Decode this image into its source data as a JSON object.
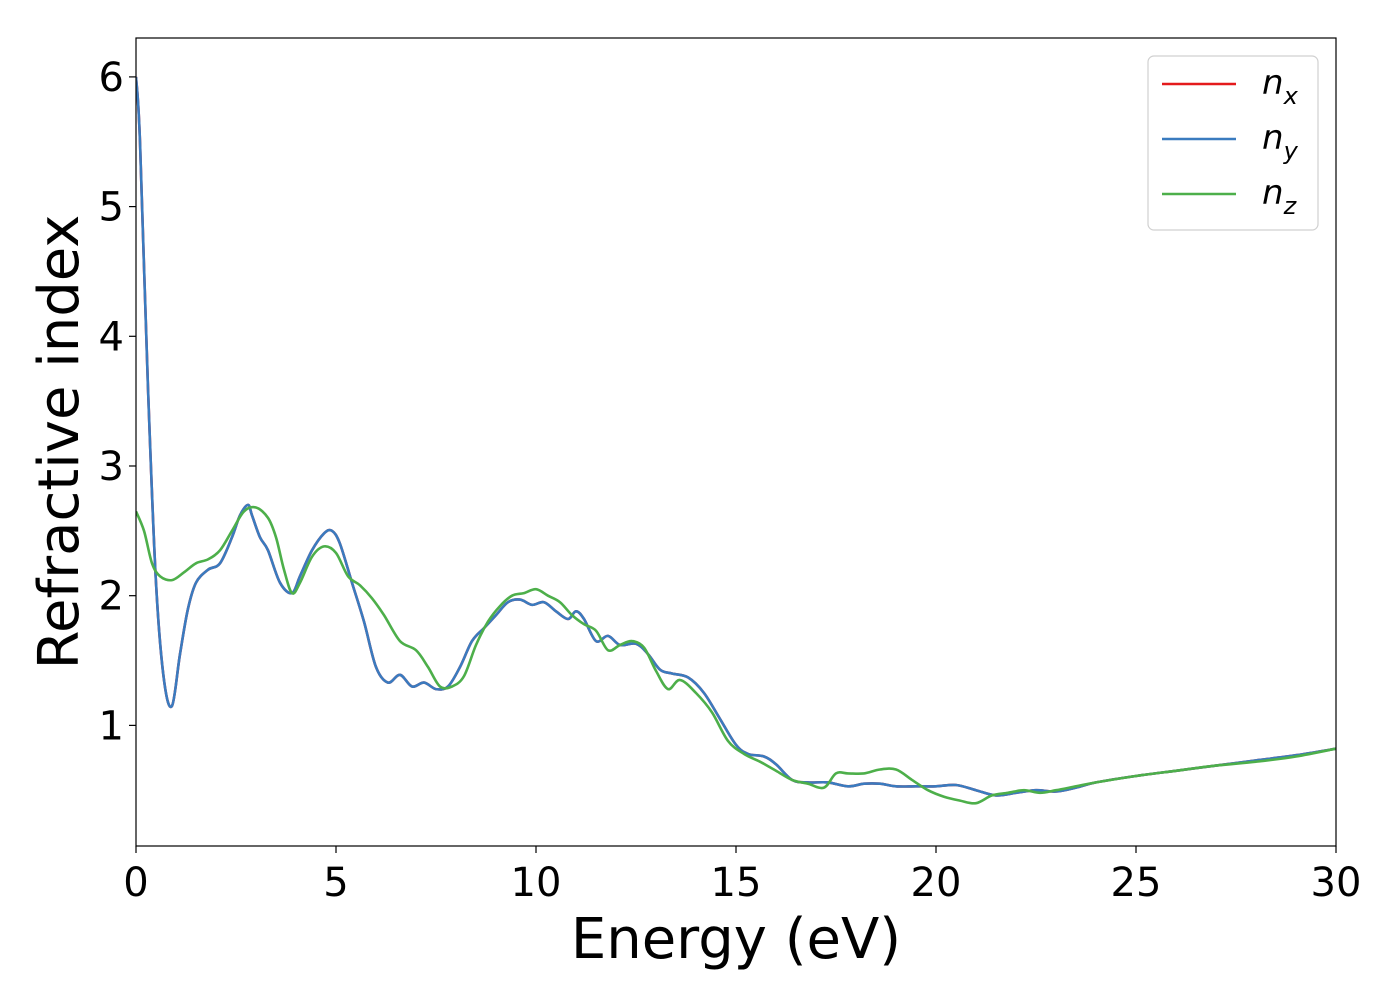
{
  "chart_data": {
    "type": "line",
    "xlabel": "Energy (eV)",
    "ylabel": "Refractive index",
    "xlim": [
      0,
      30
    ],
    "ylim": [
      0.07,
      6.3
    ],
    "xticks": [
      0,
      5,
      10,
      15,
      20,
      25,
      30
    ],
    "yticks": [
      1,
      2,
      3,
      4,
      5,
      6
    ],
    "grid": false,
    "legend_position": "top-right",
    "series": [
      {
        "name": "n_x",
        "label_base": "n",
        "label_sub": "x",
        "color": "#e41a1c",
        "x": [
          0,
          0.1,
          0.3,
          0.5,
          0.7,
          0.9,
          1.1,
          1.3,
          1.5,
          1.8,
          2.1,
          2.4,
          2.6,
          2.8,
          2.9,
          3.1,
          3.3,
          3.6,
          3.9,
          4.1,
          4.4,
          4.7,
          4.9,
          5.1,
          5.4,
          5.7,
          6.0,
          6.3,
          6.6,
          6.9,
          7.2,
          7.5,
          7.8,
          8.1,
          8.4,
          8.7,
          9.0,
          9.3,
          9.6,
          9.9,
          10.2,
          10.5,
          10.8,
          11.0,
          11.2,
          11.5,
          11.8,
          12.1,
          12.5,
          12.8,
          13.1,
          13.4,
          13.8,
          14.2,
          14.6,
          15.0,
          15.3,
          15.7,
          16.0,
          16.4,
          16.8,
          17.3,
          17.8,
          18.2,
          18.6,
          19.0,
          19.5,
          20.0,
          20.5,
          21.0,
          21.5,
          22.0,
          22.5,
          23.0,
          23.5,
          24.0,
          25.0,
          26.0,
          27.0,
          28.0,
          29.0,
          30.0
        ],
        "y": [
          6.0,
          5.5,
          3.6,
          2.1,
          1.35,
          1.15,
          1.55,
          1.9,
          2.1,
          2.2,
          2.25,
          2.45,
          2.62,
          2.7,
          2.62,
          2.45,
          2.35,
          2.1,
          2.02,
          2.15,
          2.35,
          2.48,
          2.5,
          2.4,
          2.1,
          1.8,
          1.45,
          1.33,
          1.39,
          1.3,
          1.33,
          1.28,
          1.3,
          1.45,
          1.65,
          1.75,
          1.85,
          1.95,
          1.97,
          1.93,
          1.95,
          1.88,
          1.82,
          1.88,
          1.82,
          1.65,
          1.69,
          1.62,
          1.63,
          1.55,
          1.43,
          1.4,
          1.37,
          1.25,
          1.05,
          0.85,
          0.78,
          0.76,
          0.7,
          0.58,
          0.56,
          0.56,
          0.53,
          0.55,
          0.55,
          0.53,
          0.53,
          0.53,
          0.54,
          0.5,
          0.46,
          0.48,
          0.5,
          0.49,
          0.52,
          0.56,
          0.61,
          0.65,
          0.69,
          0.73,
          0.77,
          0.82
        ]
      },
      {
        "name": "n_y",
        "label_base": "n",
        "label_sub": "y",
        "color": "#3a7bbf",
        "x": [
          0,
          0.1,
          0.3,
          0.5,
          0.7,
          0.9,
          1.1,
          1.3,
          1.5,
          1.8,
          2.1,
          2.4,
          2.6,
          2.8,
          2.9,
          3.1,
          3.3,
          3.6,
          3.9,
          4.1,
          4.4,
          4.7,
          4.9,
          5.1,
          5.4,
          5.7,
          6.0,
          6.3,
          6.6,
          6.9,
          7.2,
          7.5,
          7.8,
          8.1,
          8.4,
          8.7,
          9.0,
          9.3,
          9.6,
          9.9,
          10.2,
          10.5,
          10.8,
          11.0,
          11.2,
          11.5,
          11.8,
          12.1,
          12.5,
          12.8,
          13.1,
          13.4,
          13.8,
          14.2,
          14.6,
          15.0,
          15.3,
          15.7,
          16.0,
          16.4,
          16.8,
          17.3,
          17.8,
          18.2,
          18.6,
          19.0,
          19.5,
          20.0,
          20.5,
          21.0,
          21.5,
          22.0,
          22.5,
          23.0,
          23.5,
          24.0,
          25.0,
          26.0,
          27.0,
          28.0,
          29.0,
          30.0
        ],
        "y": [
          6.0,
          5.5,
          3.6,
          2.1,
          1.35,
          1.15,
          1.55,
          1.9,
          2.1,
          2.2,
          2.25,
          2.45,
          2.62,
          2.7,
          2.62,
          2.45,
          2.35,
          2.1,
          2.02,
          2.15,
          2.35,
          2.48,
          2.5,
          2.4,
          2.1,
          1.8,
          1.45,
          1.33,
          1.39,
          1.3,
          1.33,
          1.28,
          1.3,
          1.45,
          1.65,
          1.75,
          1.85,
          1.95,
          1.97,
          1.93,
          1.95,
          1.88,
          1.82,
          1.88,
          1.82,
          1.65,
          1.69,
          1.62,
          1.63,
          1.55,
          1.43,
          1.4,
          1.37,
          1.25,
          1.05,
          0.85,
          0.78,
          0.76,
          0.7,
          0.58,
          0.56,
          0.56,
          0.53,
          0.55,
          0.55,
          0.53,
          0.53,
          0.53,
          0.54,
          0.5,
          0.46,
          0.48,
          0.5,
          0.49,
          0.52,
          0.56,
          0.61,
          0.65,
          0.69,
          0.73,
          0.77,
          0.82
        ]
      },
      {
        "name": "n_z",
        "label_base": "n",
        "label_sub": "z",
        "color": "#4daf4a",
        "x": [
          0,
          0.2,
          0.4,
          0.6,
          0.9,
          1.2,
          1.5,
          1.8,
          2.1,
          2.4,
          2.7,
          3.0,
          3.3,
          3.5,
          3.7,
          3.9,
          4.1,
          4.4,
          4.7,
          5.0,
          5.3,
          5.6,
          5.9,
          6.2,
          6.6,
          7.0,
          7.3,
          7.6,
          7.9,
          8.2,
          8.5,
          8.8,
          9.1,
          9.4,
          9.7,
          10.0,
          10.3,
          10.6,
          10.9,
          11.2,
          11.5,
          11.8,
          12.1,
          12.4,
          12.7,
          13.0,
          13.3,
          13.6,
          14.0,
          14.4,
          14.8,
          15.2,
          15.6,
          16.0,
          16.4,
          16.8,
          17.2,
          17.5,
          17.8,
          18.2,
          18.6,
          19.0,
          19.4,
          19.8,
          20.2,
          20.6,
          21.0,
          21.4,
          21.8,
          22.2,
          22.6,
          23.0,
          23.5,
          24.0,
          25.0,
          26.0,
          27.0,
          28.0,
          29.0,
          30.0
        ],
        "y": [
          2.65,
          2.5,
          2.25,
          2.15,
          2.12,
          2.18,
          2.25,
          2.28,
          2.35,
          2.5,
          2.65,
          2.68,
          2.6,
          2.45,
          2.2,
          2.02,
          2.1,
          2.3,
          2.38,
          2.33,
          2.15,
          2.08,
          1.98,
          1.85,
          1.65,
          1.58,
          1.45,
          1.3,
          1.3,
          1.38,
          1.62,
          1.8,
          1.92,
          2.0,
          2.02,
          2.05,
          2.0,
          1.95,
          1.85,
          1.78,
          1.73,
          1.58,
          1.62,
          1.65,
          1.6,
          1.42,
          1.28,
          1.35,
          1.25,
          1.1,
          0.88,
          0.78,
          0.72,
          0.65,
          0.58,
          0.55,
          0.52,
          0.63,
          0.63,
          0.63,
          0.66,
          0.66,
          0.58,
          0.5,
          0.45,
          0.42,
          0.4,
          0.46,
          0.48,
          0.5,
          0.48,
          0.5,
          0.53,
          0.56,
          0.61,
          0.65,
          0.69,
          0.72,
          0.76,
          0.82
        ]
      }
    ]
  }
}
